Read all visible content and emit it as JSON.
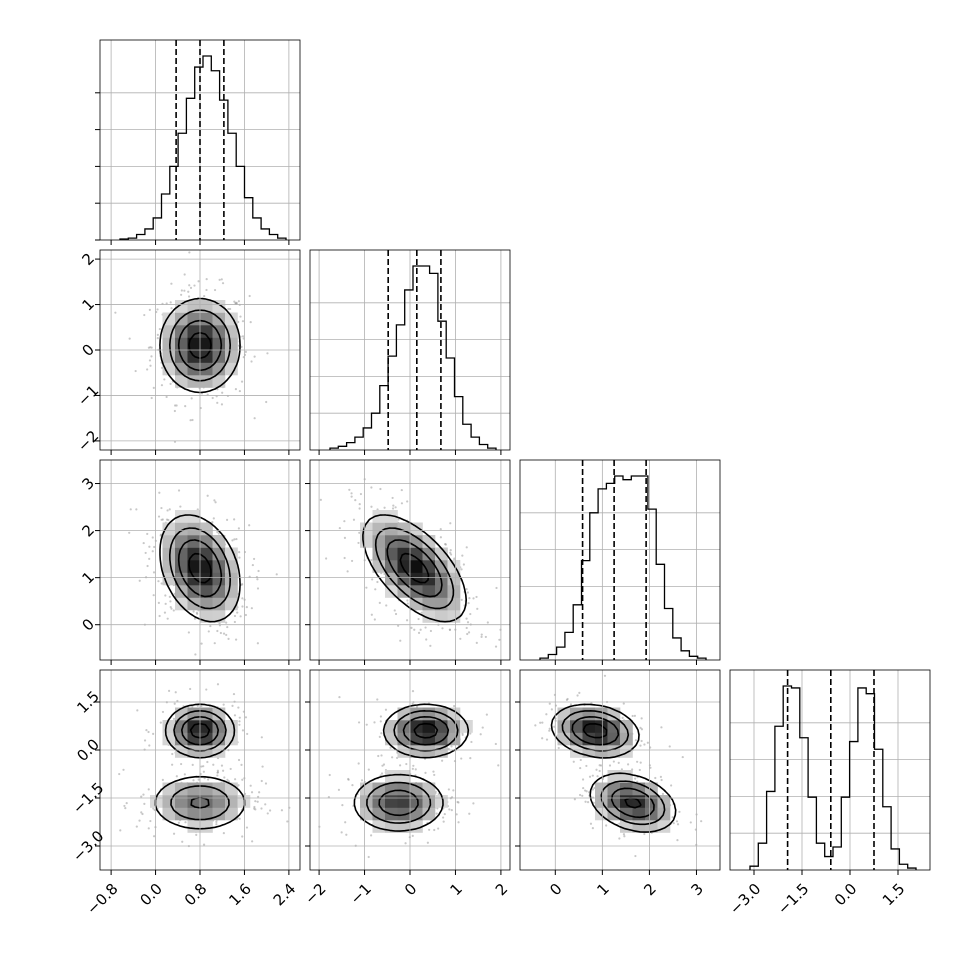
{
  "chart_data": {
    "type": "corner",
    "n_params": 4,
    "title": "",
    "grid": true,
    "histogram_bins": 20,
    "params": [
      {
        "range": [
          -1.0,
          2.6
        ],
        "ticks": [
          -0.8,
          0.0,
          0.8,
          1.6,
          2.4
        ],
        "tick_labels": [
          "−0.8",
          "0.0",
          "0.8",
          "1.6",
          "2.4"
        ],
        "quantiles": [
          0.37,
          0.8,
          1.23
        ],
        "hist_counts": [
          0.5,
          1,
          3,
          6,
          12,
          25,
          40,
          58,
          77,
          94,
          100,
          92,
          76,
          58,
          40,
          23,
          12,
          6,
          3,
          1
        ]
      },
      {
        "range": [
          -2.2,
          2.2
        ],
        "ticks": [
          -2,
          -1,
          0,
          1,
          2
        ],
        "tick_labels": [
          "−2",
          "−1",
          "0",
          "1",
          "2"
        ],
        "quantiles": [
          -0.48,
          0.15,
          0.68
        ],
        "hist_counts": [
          1,
          2,
          4,
          7,
          12,
          20,
          35,
          51,
          68,
          87,
          100,
          100,
          96,
          70,
          50,
          29,
          14,
          7,
          3,
          1
        ]
      },
      {
        "range": [
          -0.75,
          3.5
        ],
        "ticks": [
          0,
          1,
          2,
          3
        ],
        "tick_labels": [
          "0",
          "1",
          "2",
          "3"
        ],
        "quantiles": [
          0.58,
          1.25,
          1.93
        ],
        "hist_counts": [
          1,
          3,
          7,
          15,
          30,
          54,
          80,
          93,
          96,
          100,
          98,
          100,
          100,
          82,
          52,
          28,
          12,
          5,
          2,
          1
        ]
      },
      {
        "range": [
          -3.75,
          2.5
        ],
        "ticks": [
          -3.0,
          -1.5,
          0.0,
          1.5
        ],
        "tick_labels": [
          "−3.0",
          "−1.5",
          "0.0",
          "1.5"
        ],
        "quantiles": [
          -1.95,
          -0.6,
          0.75
        ],
        "hist_counts": [
          2,
          14,
          41,
          75,
          96,
          95,
          69,
          38,
          14,
          7,
          12,
          38,
          67,
          95,
          92,
          63,
          33,
          11,
          3,
          1
        ]
      }
    ],
    "pairs": [
      {
        "x": 0,
        "y": 1,
        "components": [
          {
            "weight": 1.0,
            "mx": 0.8,
            "my": 0.1,
            "sx": 0.35,
            "sy": 0.5,
            "rho": 0.0
          }
        ]
      },
      {
        "x": 0,
        "y": 2,
        "components": [
          {
            "weight": 1.0,
            "mx": 0.8,
            "my": 1.2,
            "sx": 0.35,
            "sy": 0.55,
            "rho": -0.3
          }
        ]
      },
      {
        "x": 1,
        "y": 2,
        "components": [
          {
            "weight": 1.0,
            "mx": 0.1,
            "my": 1.2,
            "sx": 0.55,
            "sy": 0.55,
            "rho": -0.6
          }
        ]
      },
      {
        "x": 0,
        "y": 3,
        "components": [
          {
            "weight": 0.5,
            "mx": 0.8,
            "my": 0.6,
            "sx": 0.3,
            "sy": 0.4,
            "rho": 0.0
          },
          {
            "weight": 0.5,
            "mx": 0.8,
            "my": -1.65,
            "sx": 0.45,
            "sy": 0.45,
            "rho": 0.0
          }
        ]
      },
      {
        "x": 1,
        "y": 3,
        "components": [
          {
            "weight": 0.5,
            "mx": 0.35,
            "my": 0.6,
            "sx": 0.45,
            "sy": 0.4,
            "rho": 0.0
          },
          {
            "weight": 0.5,
            "mx": -0.25,
            "my": -1.65,
            "sx": 0.5,
            "sy": 0.45,
            "rho": 0.0
          }
        ]
      },
      {
        "x": 2,
        "y": 3,
        "components": [
          {
            "weight": 0.5,
            "mx": 0.85,
            "my": 0.6,
            "sx": 0.45,
            "sy": 0.4,
            "rho": -0.2
          },
          {
            "weight": 0.5,
            "mx": 1.65,
            "my": -1.65,
            "sx": 0.45,
            "sy": 0.45,
            "rho": -0.3
          }
        ]
      }
    ]
  }
}
